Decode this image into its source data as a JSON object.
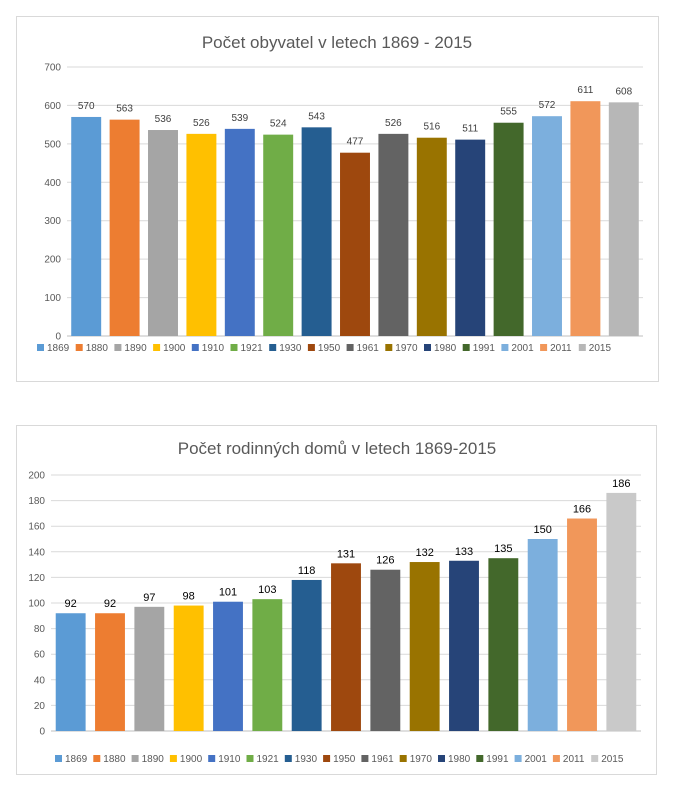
{
  "chart_data": [
    {
      "type": "bar",
      "title": "Počet obyvatel v letech 1869 - 2015",
      "categories": [
        "1869",
        "1880",
        "1890",
        "1900",
        "1910",
        "1921",
        "1930",
        "1950",
        "1961",
        "1970",
        "1980",
        "1991",
        "2001",
        "2011",
        "2015"
      ],
      "values": [
        570,
        563,
        536,
        526,
        539,
        524,
        543,
        477,
        526,
        516,
        511,
        555,
        572,
        611,
        608
      ],
      "ylim": [
        0,
        700
      ],
      "yticks": [
        0,
        100,
        200,
        300,
        400,
        500,
        600,
        700
      ],
      "grid": true,
      "legend": "bottom",
      "colors": [
        "#5b9bd5",
        "#ed7d31",
        "#a5a5a5",
        "#ffc000",
        "#4472c4",
        "#70ad47",
        "#255e91",
        "#9e480e",
        "#636363",
        "#997300",
        "#264478",
        "#43682b",
        "#7cafdd",
        "#f1975a",
        "#b7b7b7"
      ]
    },
    {
      "type": "bar",
      "title": "Počet rodinných domů v letech 1869-2015",
      "categories": [
        "1869",
        "1880",
        "1890",
        "1900",
        "1910",
        "1921",
        "1930",
        "1950",
        "1961",
        "1970",
        "1980",
        "1991",
        "2001",
        "2011",
        "2015"
      ],
      "values": [
        92,
        92,
        97,
        98,
        101,
        103,
        118,
        131,
        126,
        132,
        133,
        135,
        150,
        166,
        186
      ],
      "ylim": [
        0,
        200
      ],
      "yticks": [
        0,
        20,
        40,
        60,
        80,
        100,
        120,
        140,
        160,
        180,
        200
      ],
      "grid": true,
      "legend": "bottom",
      "colors": [
        "#5b9bd5",
        "#ed7d31",
        "#a5a5a5",
        "#ffc000",
        "#4472c4",
        "#70ad47",
        "#255e91",
        "#9e480e",
        "#636363",
        "#997300",
        "#264478",
        "#43682b",
        "#7cafdd",
        "#f1975a",
        "#c9c9c9"
      ]
    }
  ]
}
